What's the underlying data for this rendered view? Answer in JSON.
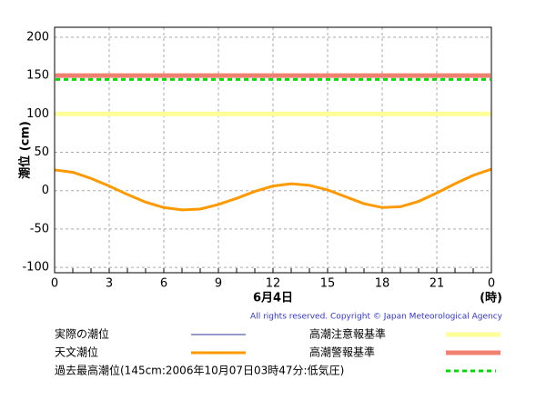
{
  "chart_data": {
    "type": "line",
    "ylabel": "潮位 (cm)",
    "xlabel": "6月4日",
    "xunit": "(時)",
    "copyright": "All rights reserved. Copyright © Japan Meteorological Agency",
    "x": [
      0,
      1,
      2,
      3,
      4,
      5,
      6,
      7,
      8,
      9,
      10,
      11,
      12,
      13,
      14,
      15,
      16,
      17,
      18,
      19,
      20,
      21,
      22,
      23,
      24
    ],
    "series": [
      {
        "name": "実際の潮位",
        "color": "#333399",
        "values": [
          null,
          null,
          null,
          null,
          null,
          null,
          null,
          null,
          null,
          null,
          null,
          null,
          null,
          null,
          null,
          null,
          null,
          null,
          null,
          null,
          null,
          null,
          null,
          null,
          null
        ]
      },
      {
        "name": "天文潮位",
        "color": "#ff9900",
        "values": [
          27,
          24,
          16,
          6,
          -5,
          -15,
          -22,
          -25,
          -24,
          -18,
          -10,
          -1,
          6,
          9,
          7,
          1,
          -8,
          -17,
          -22,
          -21,
          -14,
          -3,
          9,
          20,
          28
        ]
      }
    ],
    "reference_lines": [
      {
        "name": "高潮注意報基準",
        "value": 100,
        "color": "#ffff99",
        "style": "solid"
      },
      {
        "name": "高潮警報基準",
        "value": 150,
        "color": "#f08070",
        "style": "solid"
      },
      {
        "name": "過去最高潮位(145cm:2006年10月07日03時47分:低気圧)",
        "value": 145,
        "color": "#00dd00",
        "style": "dashed"
      }
    ],
    "xlim": [
      0,
      24
    ],
    "xticks": [
      0,
      3,
      6,
      9,
      12,
      15,
      18,
      21,
      {
        "value": 24,
        "label": "0"
      }
    ],
    "ylim": [
      -107,
      213
    ],
    "yticks": [
      -100,
      -50,
      0,
      50,
      100,
      150,
      200
    ],
    "grid": true
  }
}
